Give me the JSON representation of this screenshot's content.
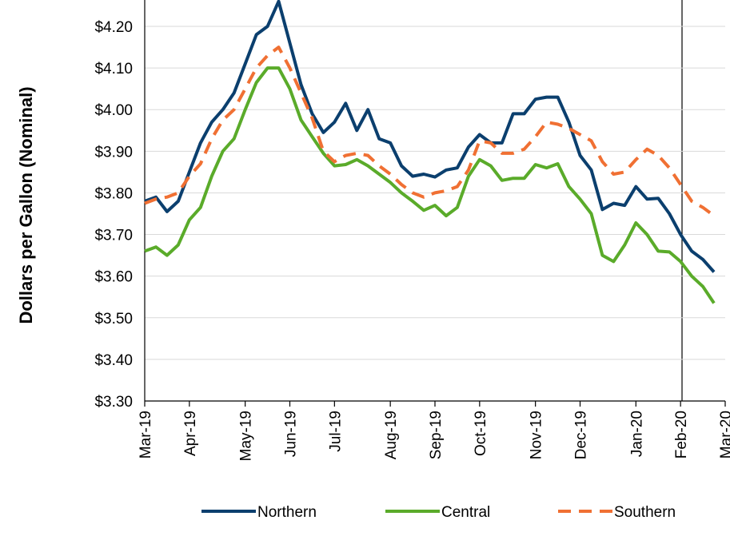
{
  "chart_data": {
    "type": "line",
    "ylabel": "Dollars per Gallon (Nominal)",
    "categories": [
      "Mar-19",
      null,
      null,
      null,
      "Apr-19",
      null,
      null,
      null,
      null,
      "May-19",
      null,
      null,
      null,
      "Jun-19",
      null,
      null,
      null,
      "Jul-19",
      null,
      null,
      null,
      null,
      "Aug-19",
      null,
      null,
      null,
      "Sep-19",
      null,
      null,
      null,
      "Oct-19",
      null,
      null,
      null,
      null,
      "Nov-19",
      null,
      null,
      null,
      "Dec-19",
      null,
      null,
      null,
      null,
      "Jan-20",
      null,
      null,
      null,
      "Feb-20",
      null,
      null,
      null,
      "Mar-20"
    ],
    "series": [
      {
        "name": "Northern",
        "color": "#0b3f6e",
        "dash": false,
        "values": [
          3.78,
          3.79,
          3.755,
          3.78,
          3.85,
          3.92,
          3.97,
          4.0,
          4.04,
          4.11,
          4.18,
          4.2,
          4.26,
          4.16,
          4.06,
          3.99,
          3.945,
          3.97,
          4.015,
          3.95,
          4.0,
          3.93,
          3.92,
          3.865,
          3.84,
          3.845,
          3.838,
          3.855,
          3.86,
          3.91,
          3.94,
          3.92,
          3.92,
          3.99,
          3.99,
          4.025,
          4.03,
          4.03,
          3.97,
          3.89,
          3.855,
          3.76,
          3.775,
          3.77,
          3.815,
          3.785,
          3.787,
          3.75,
          3.7,
          3.66,
          3.64,
          3.61,
          null
        ]
      },
      {
        "name": "Central",
        "color": "#5aab2a",
        "dash": false,
        "values": [
          3.66,
          3.67,
          3.65,
          3.675,
          3.735,
          3.765,
          3.84,
          3.9,
          3.93,
          4.0,
          4.065,
          4.1,
          4.1,
          4.05,
          3.975,
          3.935,
          3.895,
          3.865,
          3.868,
          3.88,
          3.865,
          3.845,
          3.825,
          3.8,
          3.78,
          3.758,
          3.77,
          3.745,
          3.765,
          3.84,
          3.88,
          3.865,
          3.83,
          3.835,
          3.835,
          3.868,
          3.86,
          3.87,
          3.815,
          3.785,
          3.75,
          3.65,
          3.635,
          3.675,
          3.728,
          3.7,
          3.66,
          3.658,
          3.635,
          3.6,
          3.575,
          3.535,
          null
        ]
      },
      {
        "name": "Southern",
        "color": "#f07033",
        "dash": true,
        "values": [
          3.775,
          3.785,
          3.79,
          3.8,
          3.84,
          3.87,
          3.93,
          3.975,
          4.0,
          4.05,
          4.1,
          4.13,
          4.15,
          4.1,
          4.04,
          3.98,
          3.9,
          3.875,
          3.89,
          3.895,
          3.89,
          3.865,
          3.845,
          3.82,
          3.8,
          3.79,
          3.8,
          3.805,
          3.815,
          3.855,
          3.925,
          3.92,
          3.895,
          3.895,
          3.905,
          3.935,
          3.97,
          3.965,
          3.955,
          3.94,
          3.925,
          3.875,
          3.845,
          3.85,
          3.88,
          3.905,
          3.89,
          3.86,
          3.82,
          3.78,
          3.765,
          3.745,
          null
        ]
      }
    ],
    "ylim": [
      3.3,
      4.3
    ],
    "yticks": [
      {
        "value": 3.3,
        "label": "$3.30"
      },
      {
        "value": 3.4,
        "label": "$3.40"
      },
      {
        "value": 3.5,
        "label": "$3.50"
      },
      {
        "value": 3.6,
        "label": "$3.60"
      },
      {
        "value": 3.7,
        "label": "$3.70"
      },
      {
        "value": 3.8,
        "label": "$3.80"
      },
      {
        "value": 3.9,
        "label": "$3.90"
      },
      {
        "value": 4.0,
        "label": "$4.00"
      },
      {
        "value": 4.1,
        "label": "$4.10"
      },
      {
        "value": 4.2,
        "label": "$4.20"
      }
    ],
    "grid": true
  }
}
